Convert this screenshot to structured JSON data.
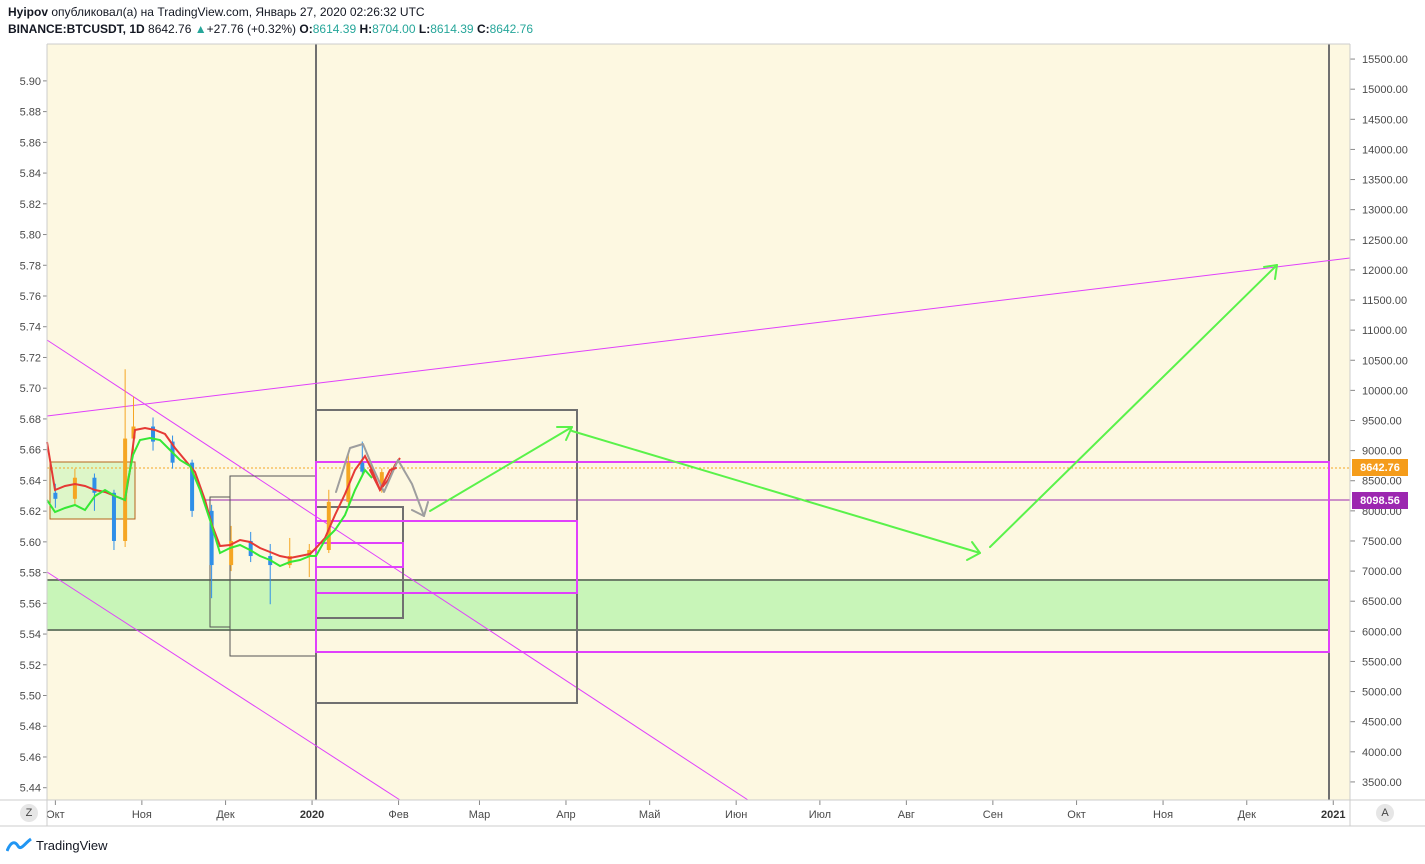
{
  "header": {
    "author": "Hyipov",
    "published_text": "опубликовал(а) на TradingView.com, Январь 27, 2020 02:26:32 UTC",
    "symbol": "BINANCE:BTCUSDT, 1D",
    "last_price": "8642.76",
    "change_arrow": "▲",
    "change": "+27.76 (+0.32%)",
    "o_label": "O:",
    "o_value": "8614.39",
    "h_label": "H:",
    "h_value": "8704.00",
    "l_label": "L:",
    "l_value": "8614.39",
    "c_label": "C:",
    "c_value": "8642.76"
  },
  "footer": {
    "brand": "TradingView"
  },
  "buttons": {
    "left_corner": "Z",
    "right_corner": "A"
  },
  "colors": {
    "background": "#fdf8e1",
    "magenta": "#e040fb",
    "green_arrow": "#5af24a",
    "red_line": "#e53935",
    "green_line": "#35e835",
    "candle_up": "#f5a623",
    "candle_down": "#2f8fe8",
    "current_price_badge": "#f59c1a",
    "level_badge": "#9c27b0",
    "support_zone": "#c8f5b8",
    "box_gray": "#707070"
  },
  "chart_data": {
    "type": "candlestick",
    "left_axis": {
      "ticks": [
        "5.90",
        "5.88",
        "5.86",
        "5.84",
        "5.82",
        "5.80",
        "5.78",
        "5.76",
        "5.74",
        "5.72",
        "5.70",
        "5.68",
        "5.66",
        "5.64",
        "5.62",
        "5.60",
        "5.58",
        "5.56",
        "5.54",
        "5.52",
        "5.50",
        "5.48",
        "5.46",
        "5.44"
      ],
      "range": [
        5.432,
        5.924
      ]
    },
    "right_axis": {
      "ticks": [
        "15500.00",
        "15000.00",
        "14500.00",
        "14000.00",
        "13500.00",
        "13000.00",
        "12500.00",
        "12000.00",
        "11500.00",
        "11000.00",
        "10500.00",
        "10000.00",
        "9500.00",
        "9000.00",
        "8500.00",
        "8000.00",
        "7500.00",
        "7000.00",
        "6500.00",
        "6000.00",
        "5500.00",
        "5000.00",
        "4500.00",
        "4000.00",
        "3500.00"
      ],
      "range": [
        3200,
        15750
      ]
    },
    "x_axis": {
      "ticks": [
        "Окт",
        "Ноя",
        "Дек",
        "2020",
        "Фев",
        "Мар",
        "Апр",
        "Май",
        "Июн",
        "Июл",
        "Авг",
        "Сен",
        "Окт",
        "Ноя",
        "Дек",
        "2021"
      ],
      "bold": [
        "2020",
        "2021"
      ],
      "range": [
        "2019-09-28",
        "2021-01-07"
      ]
    },
    "price_labels": [
      {
        "text": "8642.76",
        "value": 8642.76,
        "kind": "current"
      },
      {
        "text": "8098.56",
        "value": 8098.56,
        "kind": "level"
      }
    ],
    "ohlc": [
      {
        "x": "2019-10-01",
        "o": 8300,
        "h": 8450,
        "l": 8050,
        "c": 8200
      },
      {
        "x": "2019-10-08",
        "o": 8200,
        "h": 8700,
        "l": 8100,
        "c": 8550
      },
      {
        "x": "2019-10-15",
        "o": 8550,
        "h": 8620,
        "l": 8000,
        "c": 8300
      },
      {
        "x": "2019-10-22",
        "o": 8300,
        "h": 8350,
        "l": 7350,
        "c": 7500
      },
      {
        "x": "2019-10-26",
        "o": 7500,
        "h": 10350,
        "l": 7400,
        "c": 9200
      },
      {
        "x": "2019-10-29",
        "o": 9200,
        "h": 9900,
        "l": 9000,
        "c": 9400
      },
      {
        "x": "2019-11-05",
        "o": 9400,
        "h": 9550,
        "l": 9000,
        "c": 9150
      },
      {
        "x": "2019-11-12",
        "o": 9150,
        "h": 9250,
        "l": 8700,
        "c": 8800
      },
      {
        "x": "2019-11-19",
        "o": 8800,
        "h": 8850,
        "l": 7900,
        "c": 8000
      },
      {
        "x": "2019-11-26",
        "o": 8000,
        "h": 8100,
        "l": 6550,
        "c": 7100
      },
      {
        "x": "2019-12-03",
        "o": 7100,
        "h": 7750,
        "l": 7000,
        "c": 7500
      },
      {
        "x": "2019-12-10",
        "o": 7500,
        "h": 7650,
        "l": 7150,
        "c": 7250
      },
      {
        "x": "2019-12-17",
        "o": 7250,
        "h": 7450,
        "l": 6450,
        "c": 7100
      },
      {
        "x": "2019-12-24",
        "o": 7100,
        "h": 7550,
        "l": 7050,
        "c": 7250
      },
      {
        "x": "2019-12-31",
        "o": 7250,
        "h": 7450,
        "l": 6900,
        "c": 7350
      },
      {
        "x": "2020-01-07",
        "o": 7350,
        "h": 8350,
        "l": 7300,
        "c": 8150
      },
      {
        "x": "2020-01-14",
        "o": 8150,
        "h": 8950,
        "l": 8100,
        "c": 8800
      },
      {
        "x": "2020-01-19",
        "o": 8800,
        "h": 9150,
        "l": 8600,
        "c": 8650
      },
      {
        "x": "2020-01-26",
        "o": 8400,
        "h": 8704,
        "l": 8300,
        "c": 8642.76
      }
    ]
  }
}
